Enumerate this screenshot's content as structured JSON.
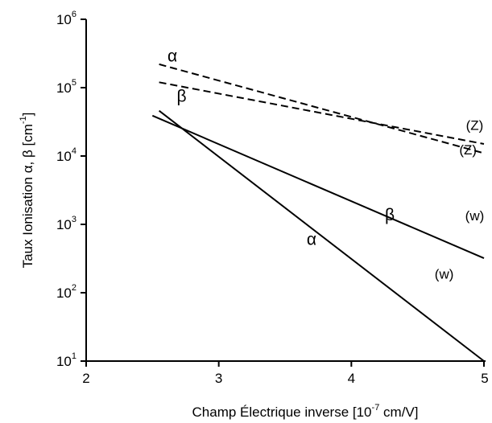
{
  "chart_data": {
    "type": "line",
    "xlabel_pre": "Champ Électrique inverse [10",
    "xlabel_sup": "-7",
    "xlabel_post": " cm/V]",
    "ylabel_pre": "Taux Ionisation α, β [cm",
    "ylabel_sup": "-1",
    "ylabel_post": "]",
    "xlim": [
      2,
      5
    ],
    "ylim_log10": [
      1,
      6
    ],
    "y_scale": "log",
    "grid": false,
    "x_ticks": [
      {
        "value": 2,
        "label": "2"
      },
      {
        "value": 3,
        "label": "3"
      },
      {
        "value": 4,
        "label": "4"
      },
      {
        "value": 5,
        "label": "5"
      }
    ],
    "y_ticks": [
      {
        "exp": 1,
        "base": "10",
        "sup": "1"
      },
      {
        "exp": 2,
        "base": "10",
        "sup": "2"
      },
      {
        "exp": 3,
        "base": "10",
        "sup": "3"
      },
      {
        "exp": 4,
        "base": "10",
        "sup": "4"
      },
      {
        "exp": 5,
        "base": "10",
        "sup": "5"
      },
      {
        "exp": 6,
        "base": "10",
        "sup": "6"
      }
    ],
    "series": [
      {
        "name": "α (w)",
        "style": "solid",
        "x": [
          2.55,
          5.0
        ],
        "y": [
          46000,
          10
        ]
      },
      {
        "name": "β (w)",
        "style": "solid",
        "x": [
          2.5,
          5.0
        ],
        "y": [
          39000,
          320
        ]
      },
      {
        "name": "α (Z)",
        "style": "dashed",
        "x": [
          2.55,
          5.0
        ],
        "y": [
          220000,
          11000
        ]
      },
      {
        "name": "β (Z)",
        "style": "dashed",
        "x": [
          2.55,
          5.0
        ],
        "y": [
          120000,
          15000
        ]
      }
    ],
    "annotations": [
      {
        "text": "α",
        "x": 2.65,
        "y": 240000,
        "size": "large"
      },
      {
        "text": "β",
        "x": 2.72,
        "y": 62000,
        "size": "large"
      },
      {
        "text": "(Z)",
        "x": 4.93,
        "y": 24000,
        "size": "small"
      },
      {
        "text": "(Z)",
        "x": 4.88,
        "y": 10500,
        "size": "small"
      },
      {
        "text": "α",
        "x": 3.7,
        "y": 500,
        "size": "large"
      },
      {
        "text": "β",
        "x": 4.29,
        "y": 1150,
        "size": "large"
      },
      {
        "text": "(w)",
        "x": 4.93,
        "y": 1150,
        "size": "small"
      },
      {
        "text": "(w)",
        "x": 4.7,
        "y": 160,
        "size": "small"
      }
    ]
  }
}
